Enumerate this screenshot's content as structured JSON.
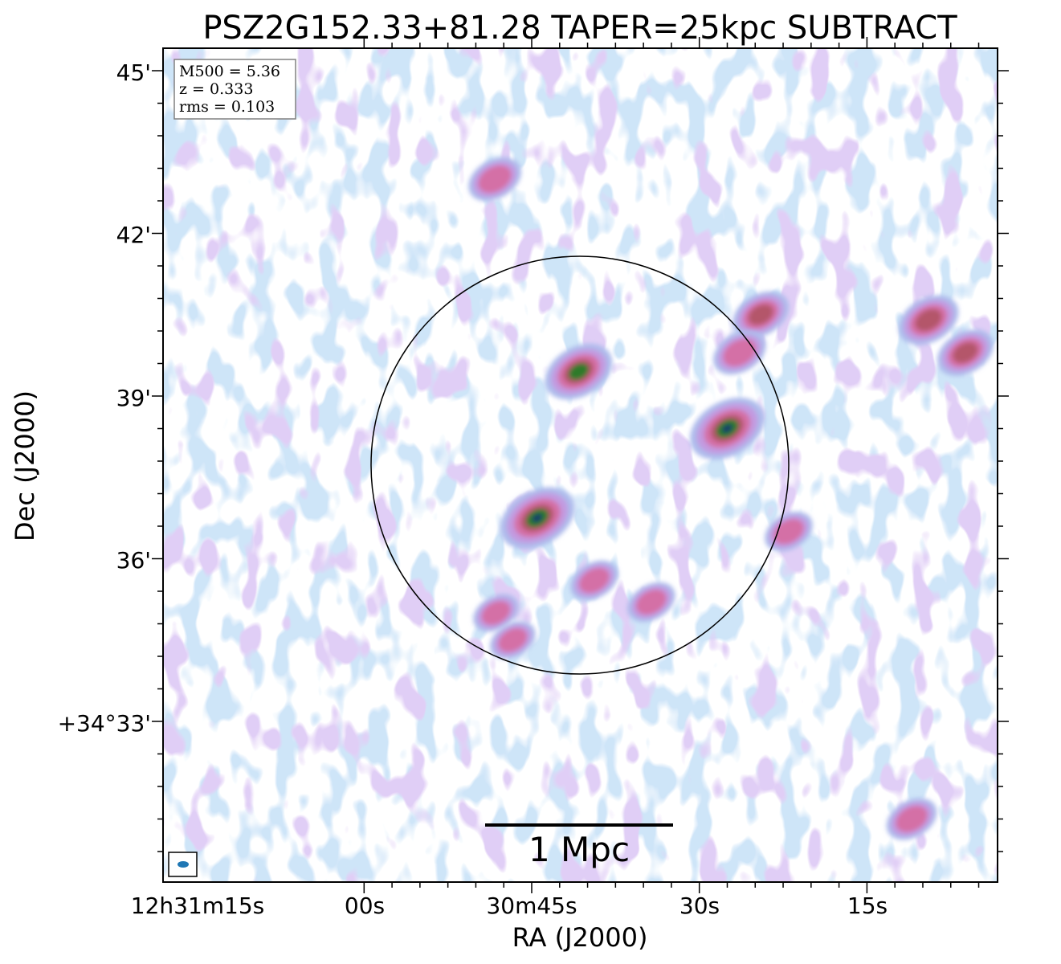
{
  "chart_data": {
    "type": "heatmap",
    "title": "PSZ2G152.33+81.28 TAPER=25kpc SUBTRACT",
    "xlabel": "RA (J2000)",
    "ylabel": "Dec (J2000)",
    "x_ticks": [
      "12h31m15s",
      "00s",
      "30m45s",
      "30s",
      "15s"
    ],
    "y_ticks": [
      "45'",
      "42'",
      "39'",
      "36'",
      "+34°33'"
    ],
    "info": {
      "line1": "M500 = 5.36",
      "line2": "z = 0.333",
      "line3": "rms = 0.103"
    },
    "scale_bar_label": "1 Mpc",
    "colormap": [
      "#ffffff",
      "#b9e0e8",
      "#aebcec",
      "#c39ae0",
      "#d46fa6",
      "#b4576b",
      "#2e7a2a",
      "#3a9a6a",
      "#123c6a"
    ],
    "sources": [
      {
        "name": "source-a",
        "ra_s": 44.5,
        "dec_m": 36.75,
        "peak": 1.0
      },
      {
        "name": "source-b",
        "ra_s": 27.5,
        "dec_m": 38.4,
        "peak": 1.0
      },
      {
        "name": "source-c",
        "ra_s": 40.8,
        "dec_m": 39.45,
        "peak": 0.85
      },
      {
        "name": "source-d",
        "ra_s": 48.3,
        "dec_m": 43.0,
        "peak": 0.55
      },
      {
        "name": "source-e",
        "ra_s": 24.5,
        "dec_m": 40.5,
        "peak": 0.62
      },
      {
        "name": "source-f",
        "ra_s": 26.4,
        "dec_m": 39.8,
        "peak": 0.55
      },
      {
        "name": "source-g",
        "ra_s": 9.5,
        "dec_m": 40.4,
        "peak": 0.7
      },
      {
        "name": "source-h",
        "ra_s": 6.2,
        "dec_m": 39.8,
        "peak": 0.62
      },
      {
        "name": "source-i",
        "ra_s": 39.4,
        "dec_m": 35.6,
        "peak": 0.45
      },
      {
        "name": "source-j",
        "ra_s": 34.3,
        "dec_m": 35.2,
        "peak": 0.45
      },
      {
        "name": "source-k",
        "ra_s": 22.0,
        "dec_m": 36.5,
        "peak": 0.45
      },
      {
        "name": "source-l",
        "ra_s": 48.2,
        "dec_m": 35.0,
        "peak": 0.4
      },
      {
        "name": "source-m",
        "ra_s": 46.7,
        "dec_m": 34.5,
        "peak": 0.4
      },
      {
        "name": "source-n",
        "ra_s": 11.0,
        "dec_m": 31.2,
        "peak": 0.5
      }
    ]
  }
}
